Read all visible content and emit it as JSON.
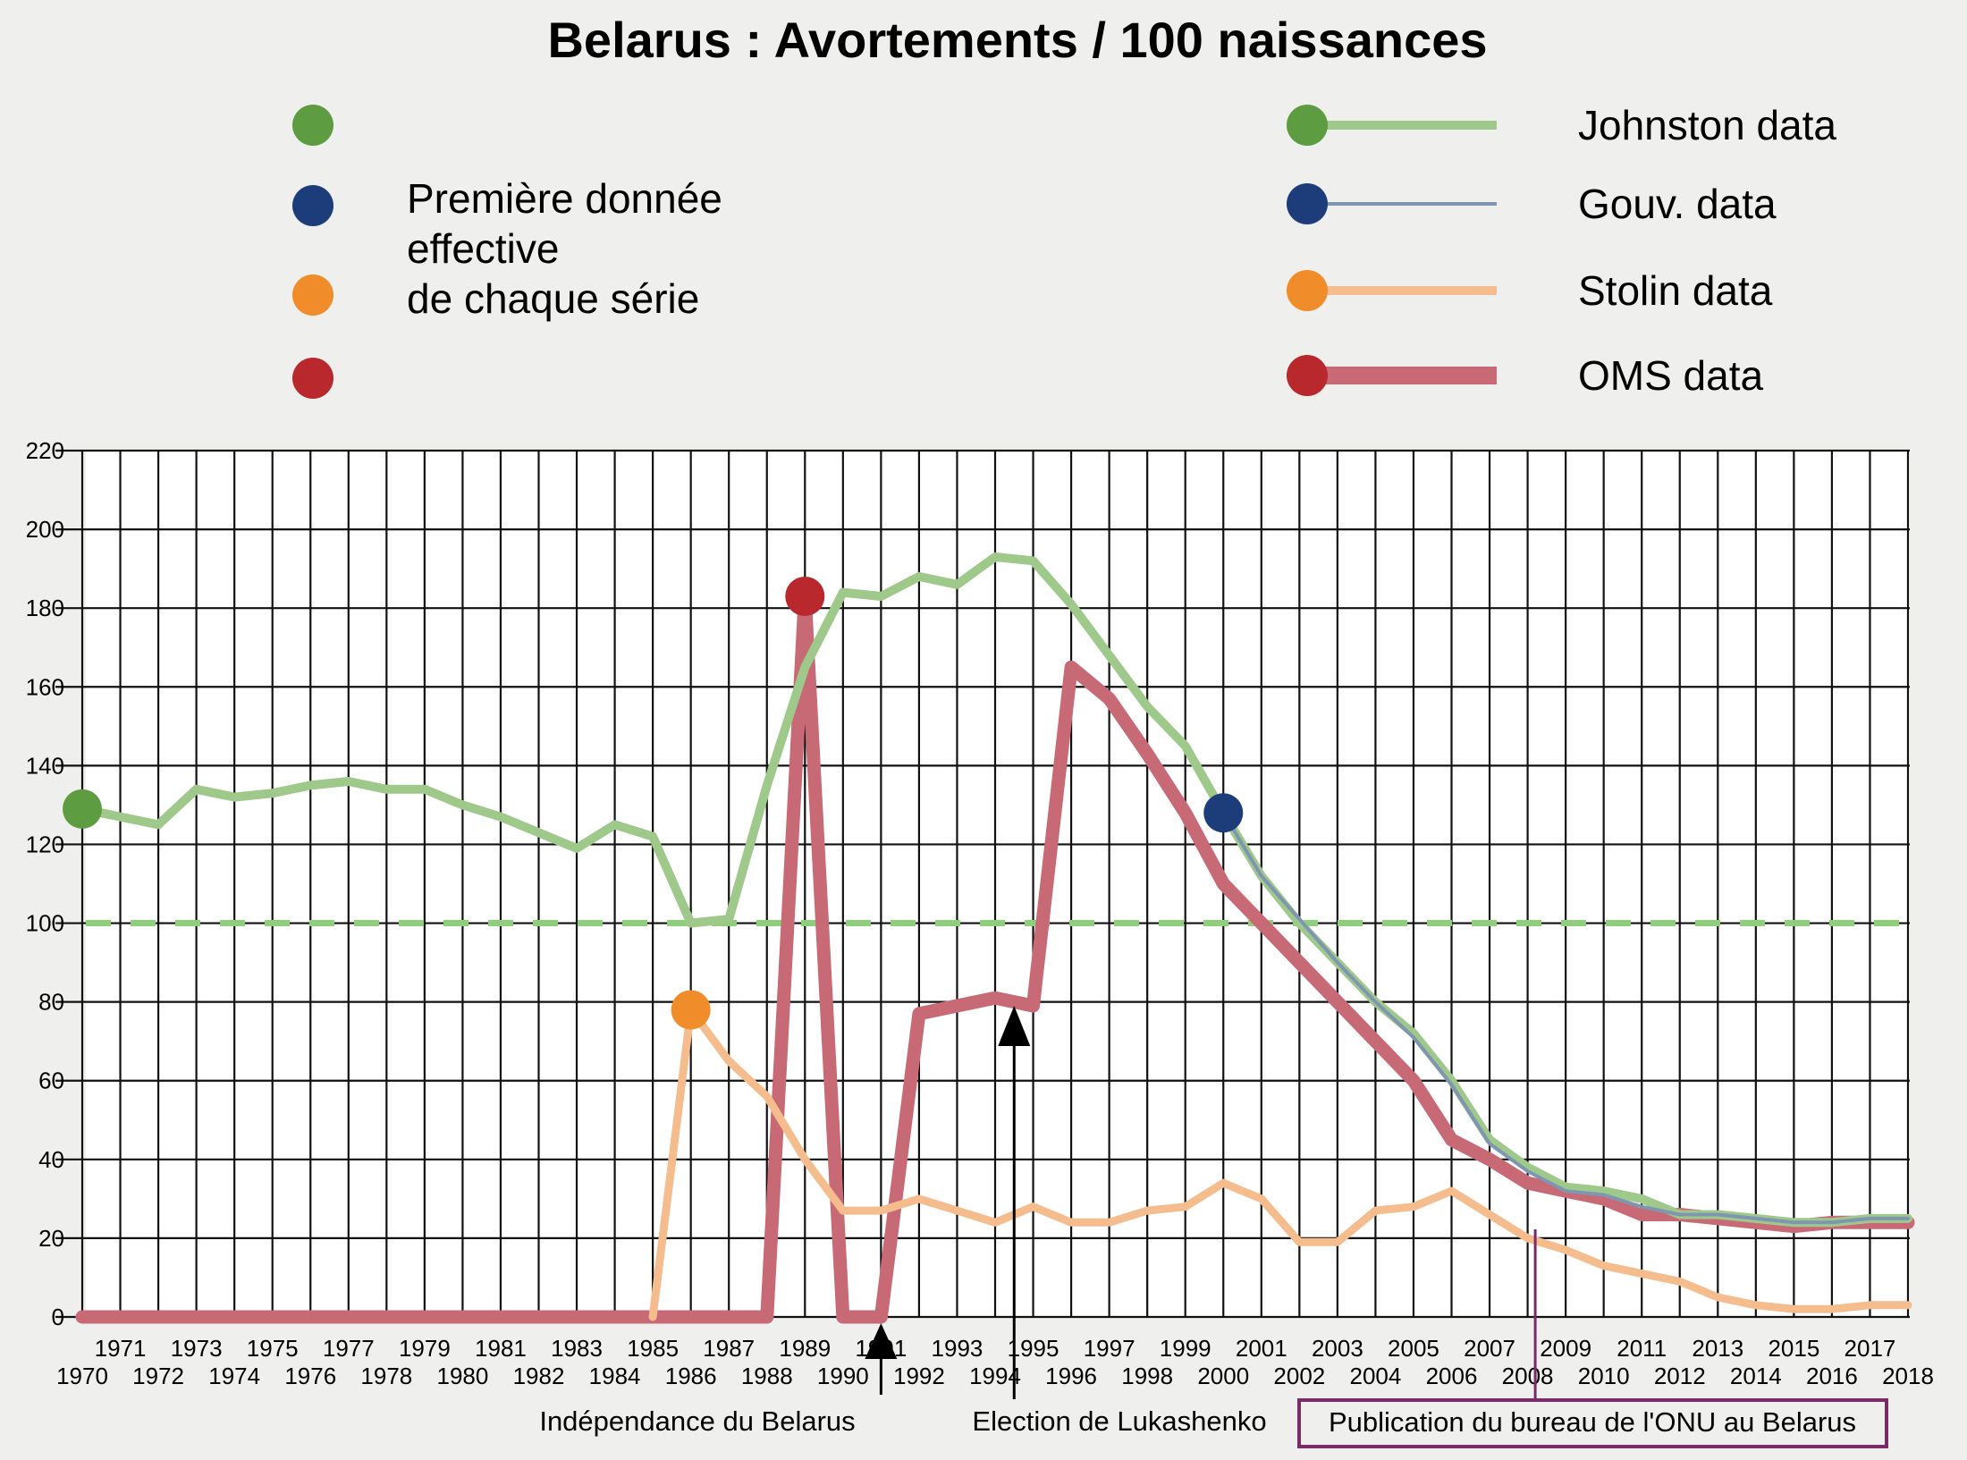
{
  "chart_data": {
    "type": "line",
    "title": "Belarus : Avortements / 100 naissances",
    "xlabel": "",
    "ylabel": "",
    "xlim": [
      1970,
      2018
    ],
    "ylim": [
      0,
      220
    ],
    "y_ticks": [
      0,
      20,
      40,
      60,
      80,
      100,
      120,
      140,
      160,
      180,
      200,
      220
    ],
    "x_ticks_upper": [
      1971,
      1973,
      1975,
      1977,
      1979,
      1981,
      1983,
      1985,
      1987,
      1989,
      1991,
      1993,
      1995,
      1997,
      1999,
      2001,
      2003,
      2005,
      2007,
      2009,
      2011,
      2013,
      2015,
      2017
    ],
    "x_ticks_lower": [
      1970,
      1972,
      1974,
      1976,
      1978,
      1980,
      1982,
      1984,
      1986,
      1988,
      1990,
      1992,
      1994,
      1996,
      1998,
      2000,
      2002,
      2004,
      2006,
      2008,
      2010,
      2012,
      2014,
      2016,
      2018
    ],
    "grid": true,
    "legend_position": "top",
    "legend_note": "Première donnée effective de chaque série",
    "reference_line": {
      "y": 100,
      "color": "#8fcf7c",
      "style": "dashed"
    },
    "series": [
      {
        "name": "OMS data",
        "color": "#c86a76",
        "marker_color": "#b8282c",
        "first_point": [
          1989,
          183
        ],
        "points": [
          [
            1970,
            0
          ],
          [
            1971,
            0
          ],
          [
            1972,
            0
          ],
          [
            1973,
            0
          ],
          [
            1974,
            0
          ],
          [
            1975,
            0
          ],
          [
            1976,
            0
          ],
          [
            1977,
            0
          ],
          [
            1978,
            0
          ],
          [
            1979,
            0
          ],
          [
            1980,
            0
          ],
          [
            1981,
            0
          ],
          [
            1982,
            0
          ],
          [
            1983,
            0
          ],
          [
            1984,
            0
          ],
          [
            1985,
            0
          ],
          [
            1986,
            0
          ],
          [
            1987,
            0
          ],
          [
            1988,
            0
          ],
          [
            1989,
            183
          ],
          [
            1990,
            0
          ],
          [
            1991,
            0
          ],
          [
            1992,
            77
          ],
          [
            1993,
            79
          ],
          [
            1994,
            81
          ],
          [
            1995,
            79
          ],
          [
            1996,
            165
          ],
          [
            1997,
            157
          ],
          [
            1998,
            143
          ],
          [
            1999,
            128
          ],
          [
            2000,
            110
          ],
          [
            2001,
            100
          ],
          [
            2002,
            90
          ],
          [
            2003,
            80
          ],
          [
            2004,
            70
          ],
          [
            2005,
            60
          ],
          [
            2006,
            45
          ],
          [
            2007,
            40
          ],
          [
            2008,
            34
          ],
          [
            2009,
            32
          ],
          [
            2010,
            30
          ],
          [
            2011,
            26
          ],
          [
            2012,
            26
          ],
          [
            2013,
            25
          ],
          [
            2014,
            24
          ],
          [
            2015,
            23
          ],
          [
            2016,
            24
          ],
          [
            2017,
            24
          ],
          [
            2018,
            24
          ]
        ]
      },
      {
        "name": "Stolin data",
        "color": "#f5bd8e",
        "marker_color": "#f08c2a",
        "first_point": [
          1986,
          78
        ],
        "points": [
          [
            1985,
            0
          ],
          [
            1986,
            78
          ],
          [
            1987,
            65
          ],
          [
            1988,
            56
          ],
          [
            1989,
            40
          ],
          [
            1990,
            27
          ],
          [
            1991,
            27
          ],
          [
            1992,
            30
          ],
          [
            1993,
            27
          ],
          [
            1994,
            24
          ],
          [
            1995,
            28
          ],
          [
            1996,
            24
          ],
          [
            1997,
            24
          ],
          [
            1998,
            27
          ],
          [
            1999,
            28
          ],
          [
            2000,
            34
          ],
          [
            2001,
            30
          ],
          [
            2002,
            19
          ],
          [
            2003,
            19
          ],
          [
            2004,
            27
          ],
          [
            2005,
            28
          ],
          [
            2006,
            32
          ],
          [
            2007,
            26
          ],
          [
            2008,
            20
          ],
          [
            2009,
            17
          ],
          [
            2010,
            13
          ],
          [
            2011,
            11
          ],
          [
            2012,
            9
          ],
          [
            2013,
            5
          ],
          [
            2014,
            3
          ],
          [
            2015,
            2
          ],
          [
            2016,
            2
          ],
          [
            2017,
            3
          ],
          [
            2018,
            3
          ]
        ]
      },
      {
        "name": "Johnston data",
        "color": "#9ec98a",
        "marker_color": "#5d9c40",
        "first_point": [
          1970,
          129
        ],
        "points": [
          [
            1970,
            129
          ],
          [
            1971,
            127
          ],
          [
            1972,
            125
          ],
          [
            1973,
            134
          ],
          [
            1974,
            132
          ],
          [
            1975,
            133
          ],
          [
            1976,
            135
          ],
          [
            1977,
            136
          ],
          [
            1978,
            134
          ],
          [
            1979,
            134
          ],
          [
            1980,
            130
          ],
          [
            1981,
            127
          ],
          [
            1982,
            123
          ],
          [
            1983,
            119
          ],
          [
            1984,
            125
          ],
          [
            1985,
            122
          ],
          [
            1986,
            100
          ],
          [
            1987,
            101
          ],
          [
            1988,
            135
          ],
          [
            1989,
            165
          ],
          [
            1990,
            184
          ],
          [
            1991,
            183
          ],
          [
            1992,
            188
          ],
          [
            1993,
            186
          ],
          [
            1994,
            193
          ],
          [
            1995,
            192
          ],
          [
            1996,
            181
          ],
          [
            1997,
            168
          ],
          [
            1998,
            155
          ],
          [
            1999,
            145
          ],
          [
            2000,
            128
          ],
          [
            2001,
            112
          ],
          [
            2002,
            100
          ],
          [
            2003,
            90
          ],
          [
            2004,
            80
          ],
          [
            2005,
            72
          ],
          [
            2006,
            60
          ],
          [
            2007,
            45
          ],
          [
            2008,
            38
          ],
          [
            2009,
            33
          ],
          [
            2010,
            32
          ],
          [
            2011,
            30
          ],
          [
            2012,
            26
          ],
          [
            2013,
            26
          ],
          [
            2014,
            25
          ],
          [
            2015,
            24
          ],
          [
            2016,
            24
          ],
          [
            2017,
            25
          ],
          [
            2018,
            25
          ]
        ]
      },
      {
        "name": "Gouv. data",
        "color": "#7f96b3",
        "marker_color": "#1d3d7a",
        "first_point": [
          2000,
          128
        ],
        "points": [
          [
            2000,
            128
          ],
          [
            2001,
            112
          ],
          [
            2002,
            101
          ],
          [
            2003,
            90
          ],
          [
            2004,
            80
          ],
          [
            2005,
            71
          ],
          [
            2006,
            59
          ],
          [
            2007,
            44
          ],
          [
            2008,
            37
          ],
          [
            2009,
            32
          ],
          [
            2010,
            31
          ],
          [
            2011,
            28
          ],
          [
            2012,
            26
          ],
          [
            2013,
            26
          ],
          [
            2014,
            25
          ],
          [
            2015,
            24
          ],
          [
            2016,
            24
          ],
          [
            2017,
            25
          ],
          [
            2018,
            25
          ]
        ]
      }
    ],
    "annotations": [
      {
        "label": "Indépendance du Belarus",
        "x": 1991
      },
      {
        "label": "Election de Lukashenko",
        "x": 1994.5
      },
      {
        "label": "Publication du bureau de l'ONU au Belarus",
        "x": 2008.2,
        "boxed": true,
        "color": "#7a2a6a"
      }
    ]
  }
}
